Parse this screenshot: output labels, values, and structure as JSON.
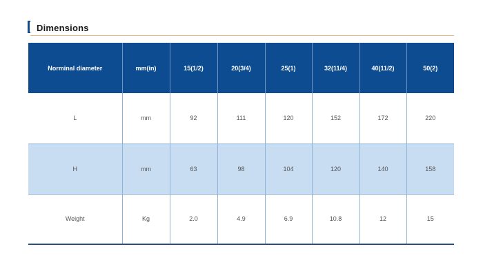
{
  "section": {
    "title": "Dimensions"
  },
  "table": {
    "headers": [
      "Norminal diameter",
      "mm(in)",
      "15(1/2)",
      "20(3/4)",
      "25(1)",
      "32(11/4)",
      "40(11/2)",
      "50(2)"
    ],
    "rows": [
      {
        "label": "L",
        "unit": "mm",
        "values": [
          "92",
          "111",
          "120",
          "152",
          "172",
          "220"
        ]
      },
      {
        "label": "H",
        "unit": "mm",
        "values": [
          "63",
          "98",
          "104",
          "120",
          "140",
          "158"
        ]
      },
      {
        "label": "Weight",
        "unit": "Kg",
        "values": [
          "2.0",
          "4.9",
          "6.9",
          "10.8",
          "12",
          "15"
        ]
      }
    ]
  },
  "colors": {
    "header_bg": "#0d4c91",
    "alt_row_bg": "#c8dcf2",
    "accent": "#17498d",
    "rule": "#e6b98a"
  }
}
